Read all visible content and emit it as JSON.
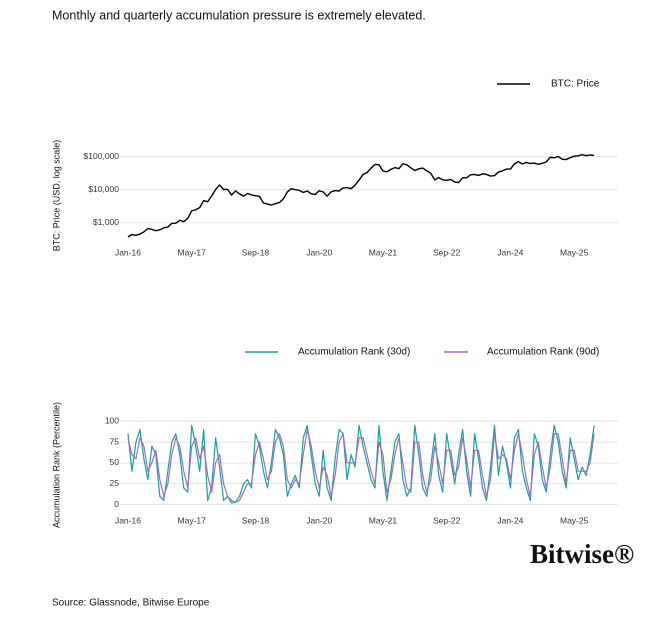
{
  "title": "Monthly and quarterly accumulation pressure is extremely elevated.",
  "source": "Source: Glassnode, Bitwise Europe",
  "logo": "Bitwise®",
  "chart_data": [
    {
      "type": "line",
      "y_label": "BTC: Price (USD, log scale)",
      "log_scale": true,
      "grid": true,
      "legend": "top-right",
      "xlim": [
        "Nov-15",
        "Apr-26"
      ],
      "xticks": [
        "Jan-16",
        "May-17",
        "Sep-18",
        "Jan-20",
        "May-21",
        "Sep-22",
        "Jan-24",
        "May-25"
      ],
      "ylim": [
        300,
        150000
      ],
      "yticks": [
        {
          "value": 1000,
          "label": "$1,000"
        },
        {
          "value": 10000,
          "label": "$10,000"
        },
        {
          "value": 100000,
          "label": "$100,000"
        }
      ],
      "x": [
        "Jan-16",
        "Feb-16",
        "Mar-16",
        "Apr-16",
        "May-16",
        "Jun-16",
        "Jul-16",
        "Aug-16",
        "Sep-16",
        "Oct-16",
        "Nov-16",
        "Dec-16",
        "Jan-17",
        "Feb-17",
        "Mar-17",
        "Apr-17",
        "May-17",
        "Jun-17",
        "Jul-17",
        "Aug-17",
        "Sep-17",
        "Oct-17",
        "Nov-17",
        "Dec-17",
        "Jan-18",
        "Feb-18",
        "Mar-18",
        "Apr-18",
        "May-18",
        "Jun-18",
        "Jul-18",
        "Aug-18",
        "Sep-18",
        "Oct-18",
        "Nov-18",
        "Dec-18",
        "Jan-19",
        "Feb-19",
        "Mar-19",
        "Apr-19",
        "May-19",
        "Jun-19",
        "Jul-19",
        "Aug-19",
        "Sep-19",
        "Oct-19",
        "Nov-19",
        "Dec-19",
        "Jan-20",
        "Feb-20",
        "Mar-20",
        "Apr-20",
        "May-20",
        "Jun-20",
        "Jul-20",
        "Aug-20",
        "Sep-20",
        "Oct-20",
        "Nov-20",
        "Dec-20",
        "Jan-21",
        "Feb-21",
        "Mar-21",
        "Apr-21",
        "May-21",
        "Jun-21",
        "Jul-21",
        "Aug-21",
        "Sep-21",
        "Oct-21",
        "Nov-21",
        "Dec-21",
        "Jan-22",
        "Feb-22",
        "Mar-22",
        "Apr-22",
        "May-22",
        "Jun-22",
        "Jul-22",
        "Aug-22",
        "Sep-22",
        "Oct-22",
        "Nov-22",
        "Dec-22",
        "Jan-23",
        "Feb-23",
        "Mar-23",
        "Apr-23",
        "May-23",
        "Jun-23",
        "Jul-23",
        "Aug-23",
        "Sep-23",
        "Oct-23",
        "Nov-23",
        "Dec-23",
        "Jan-24",
        "Feb-24",
        "Mar-24",
        "Apr-24",
        "May-24",
        "Jun-24",
        "Jul-24",
        "Aug-24",
        "Sep-24",
        "Oct-24",
        "Nov-24",
        "Dec-24",
        "Jan-25",
        "Feb-25",
        "Mar-25",
        "Apr-25",
        "May-25",
        "Jun-25",
        "Jul-25",
        "Aug-25",
        "Sep-25",
        "Oct-25"
      ],
      "series": [
        {
          "name": "BTC: Price",
          "color": "#000000",
          "values": [
            370,
            440,
            415,
            450,
            530,
            670,
            625,
            575,
            610,
            700,
            740,
            960,
            970,
            1190,
            1080,
            1350,
            2300,
            2480,
            2875,
            4700,
            4340,
            6470,
            10200,
            14000,
            10200,
            10300,
            6900,
            9240,
            7500,
            6400,
            7730,
            7000,
            6600,
            6300,
            4000,
            3700,
            3450,
            3800,
            4100,
            5300,
            8600,
            10800,
            10100,
            9600,
            8300,
            9200,
            7550,
            7200,
            9350,
            8600,
            6400,
            8650,
            9450,
            9150,
            11350,
            11650,
            10780,
            13800,
            19700,
            29000,
            33100,
            45200,
            58900,
            57700,
            37300,
            35000,
            41500,
            47100,
            43800,
            61300,
            57000,
            46300,
            38500,
            43200,
            45500,
            37700,
            31800,
            19900,
            23300,
            20050,
            19400,
            20500,
            17200,
            16550,
            23100,
            23150,
            28500,
            29250,
            27200,
            30500,
            29200,
            26000,
            27000,
            34500,
            37700,
            42300,
            42600,
            61200,
            71300,
            60600,
            67500,
            62700,
            64600,
            59000,
            63300,
            70200,
            96400,
            93400,
            102400,
            84400,
            82500,
            94200,
            104600,
            107200,
            115800,
            108300,
            114000,
            109600
          ]
        }
      ]
    },
    {
      "type": "line",
      "y_label": "Accumulation Rank (Percentile)",
      "log_scale": false,
      "grid": true,
      "legend": "top-center",
      "xlim": [
        "Nov-15",
        "Apr-26"
      ],
      "xticks": [
        "Jan-16",
        "May-17",
        "Sep-18",
        "Jan-20",
        "May-21",
        "Sep-22",
        "Jan-24",
        "May-25"
      ],
      "ylim": [
        -10,
        105
      ],
      "yticks": [
        0,
        25,
        50,
        75,
        100
      ],
      "x": [
        "Jan-16",
        "Feb-16",
        "Mar-16",
        "Apr-16",
        "May-16",
        "Jun-16",
        "Jul-16",
        "Aug-16",
        "Sep-16",
        "Oct-16",
        "Nov-16",
        "Dec-16",
        "Jan-17",
        "Feb-17",
        "Mar-17",
        "Apr-17",
        "May-17",
        "Jun-17",
        "Jul-17",
        "Aug-17",
        "Sep-17",
        "Oct-17",
        "Nov-17",
        "Dec-17",
        "Jan-18",
        "Feb-18",
        "Mar-18",
        "Apr-18",
        "May-18",
        "Jun-18",
        "Jul-18",
        "Aug-18",
        "Sep-18",
        "Oct-18",
        "Nov-18",
        "Dec-18",
        "Jan-19",
        "Feb-19",
        "Mar-19",
        "Apr-19",
        "May-19",
        "Jun-19",
        "Jul-19",
        "Aug-19",
        "Sep-19",
        "Oct-19",
        "Nov-19",
        "Dec-19",
        "Jan-20",
        "Feb-20",
        "Mar-20",
        "Apr-20",
        "May-20",
        "Jun-20",
        "Jul-20",
        "Aug-20",
        "Sep-20",
        "Oct-20",
        "Nov-20",
        "Dec-20",
        "Jan-21",
        "Feb-21",
        "Mar-21",
        "Apr-21",
        "May-21",
        "Jun-21",
        "Jul-21",
        "Aug-21",
        "Sep-21",
        "Oct-21",
        "Nov-21",
        "Dec-21",
        "Jan-22",
        "Feb-22",
        "Mar-22",
        "Apr-22",
        "May-22",
        "Jun-22",
        "Jul-22",
        "Aug-22",
        "Sep-22",
        "Oct-22",
        "Nov-22",
        "Dec-22",
        "Jan-23",
        "Feb-23",
        "Mar-23",
        "Apr-23",
        "May-23",
        "Jun-23",
        "Jul-23",
        "Aug-23",
        "Sep-23",
        "Oct-23",
        "Nov-23",
        "Dec-23",
        "Jan-24",
        "Feb-24",
        "Mar-24",
        "Apr-24",
        "May-24",
        "Jun-24",
        "Jul-24",
        "Aug-24",
        "Sep-24",
        "Oct-24",
        "Nov-24",
        "Dec-24",
        "Jan-25",
        "Feb-25",
        "Mar-25",
        "Apr-25",
        "May-25",
        "Jun-25",
        "Jul-25",
        "Aug-25",
        "Sep-25",
        "Oct-25"
      ],
      "series": [
        {
          "name": "Accumulation Rank (30d)",
          "color": "#1a9e9e",
          "values": [
            85,
            40,
            75,
            90,
            55,
            30,
            70,
            60,
            10,
            5,
            40,
            75,
            85,
            60,
            20,
            15,
            95,
            70,
            40,
            90,
            5,
            20,
            80,
            45,
            5,
            10,
            2,
            3,
            10,
            25,
            30,
            20,
            85,
            70,
            40,
            20,
            50,
            90,
            80,
            60,
            10,
            25,
            35,
            20,
            80,
            95,
            60,
            25,
            10,
            65,
            20,
            5,
            55,
            90,
            85,
            30,
            60,
            45,
            95,
            70,
            50,
            30,
            20,
            95,
            40,
            5,
            40,
            75,
            85,
            30,
            10,
            20,
            95,
            60,
            20,
            10,
            45,
            85,
            35,
            15,
            85,
            55,
            25,
            60,
            90,
            40,
            10,
            85,
            55,
            20,
            5,
            45,
            95,
            35,
            70,
            50,
            20,
            80,
            90,
            40,
            20,
            5,
            85,
            70,
            30,
            15,
            60,
            95,
            75,
            40,
            20,
            80,
            55,
            30,
            45,
            35,
            60,
            95
          ]
        },
        {
          "name": "Accumulation Rank (90d)",
          "color": "#9b6fc0",
          "values": [
            80,
            60,
            55,
            80,
            70,
            40,
            50,
            65,
            30,
            10,
            25,
            60,
            80,
            70,
            40,
            20,
            70,
            80,
            55,
            70,
            35,
            15,
            50,
            60,
            25,
            10,
            5,
            3,
            5,
            15,
            25,
            25,
            60,
            75,
            55,
            30,
            40,
            75,
            85,
            70,
            30,
            20,
            30,
            25,
            60,
            90,
            70,
            40,
            20,
            45,
            35,
            10,
            35,
            75,
            85,
            50,
            50,
            50,
            80,
            80,
            60,
            40,
            25,
            75,
            60,
            15,
            30,
            60,
            80,
            50,
            20,
            15,
            75,
            75,
            35,
            15,
            30,
            70,
            50,
            25,
            65,
            65,
            35,
            45,
            80,
            55,
            20,
            65,
            65,
            35,
            10,
            30,
            85,
            55,
            60,
            55,
            30,
            65,
            85,
            60,
            30,
            10,
            60,
            75,
            45,
            20,
            45,
            85,
            85,
            55,
            25,
            65,
            65,
            40,
            40,
            40,
            50,
            85
          ]
        }
      ]
    }
  ]
}
